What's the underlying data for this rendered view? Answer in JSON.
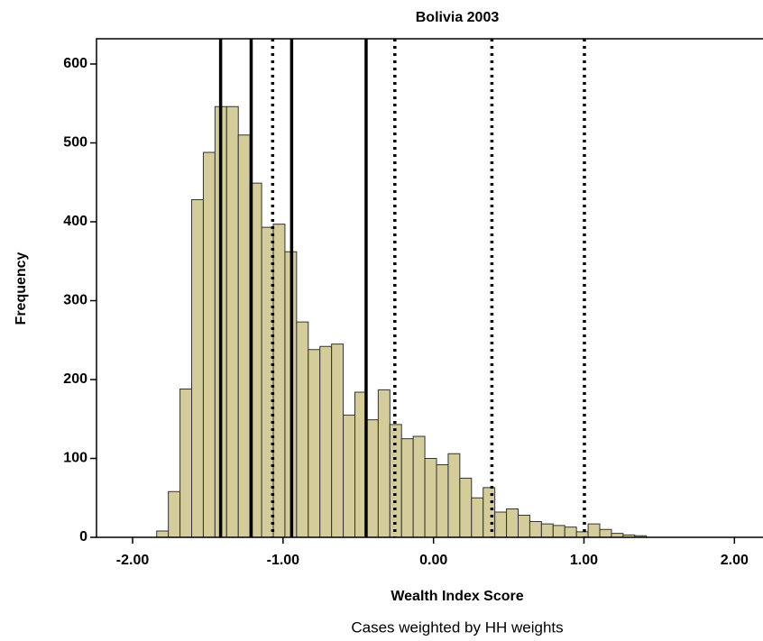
{
  "chart_data": {
    "type": "histogram",
    "title": "Bolivia 2003",
    "x_label": "Wealth Index Score",
    "y_label": "Frequency",
    "note": "Cases weighted by HH weights",
    "bins": [
      -1.84,
      -1.7625,
      -1.685,
      -1.6075,
      -1.53,
      -1.4525,
      -1.375,
      -1.2975,
      -1.22,
      -1.1425,
      -1.065,
      -0.9875,
      -0.91,
      -0.8325,
      -0.755,
      -0.6775,
      -0.6,
      -0.5225,
      -0.445,
      -0.3675,
      -0.29,
      -0.2125,
      -0.135,
      -0.0575,
      0.02,
      0.0975,
      0.175,
      0.2525,
      0.33,
      0.4075,
      0.485,
      0.5625,
      0.64,
      0.7175,
      0.795,
      0.8725,
      0.95,
      1.0275,
      1.105,
      1.1825,
      1.26,
      1.3375,
      1.415
    ],
    "values": [
      8,
      58,
      188,
      428,
      488,
      546,
      546,
      510,
      449,
      393,
      397,
      362,
      273,
      238,
      242,
      245,
      155,
      184,
      149,
      187,
      143,
      125,
      128,
      100,
      92,
      106,
      75,
      50,
      63,
      32,
      36,
      28,
      20,
      17,
      15,
      13,
      7,
      17,
      10,
      5,
      3,
      2
    ],
    "color": "#d4cd9b",
    "edge_color": "#333333",
    "solid_lines": [
      -1.415,
      -1.212,
      -0.943,
      -0.448
    ],
    "dotted_lines": [
      -1.069,
      -0.257,
      0.388,
      1.003
    ],
    "xlim": [
      -2.24,
      2.19
    ],
    "ylim": [
      0,
      632
    ],
    "xticks": [
      {
        "value": -2,
        "label": "-2.00"
      },
      {
        "value": -1,
        "label": "-1.00"
      },
      {
        "value": 0,
        "label": "0.00"
      },
      {
        "value": 1,
        "label": "1.00"
      },
      {
        "value": 2,
        "label": "2.00"
      }
    ],
    "yticks": [
      0,
      100,
      200,
      300,
      400,
      500,
      600
    ]
  }
}
